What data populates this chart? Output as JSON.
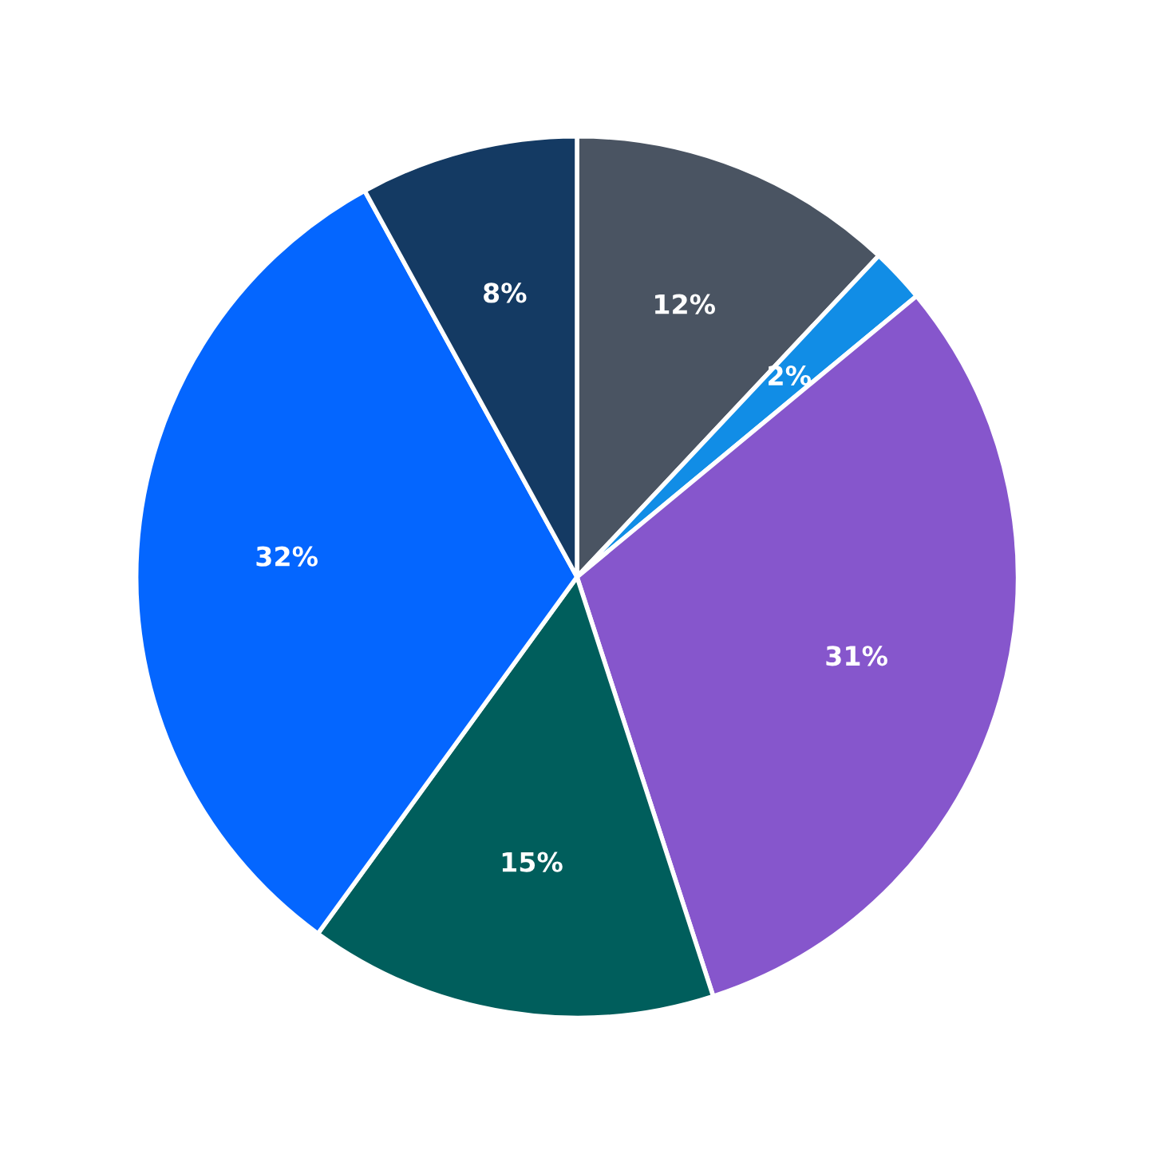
{
  "chart_data": {
    "type": "pie",
    "categories": [
      null,
      null,
      null,
      null,
      null,
      null
    ],
    "values": [
      12,
      2,
      31,
      15,
      32,
      8
    ],
    "colors": [
      "#4a5462",
      "#118de6",
      "#8656cc",
      "#005e5c",
      "#0466ff",
      "#143a63"
    ],
    "value_labels": [
      "12%",
      "2%",
      "31%",
      "15%",
      "32%",
      "8%"
    ]
  }
}
